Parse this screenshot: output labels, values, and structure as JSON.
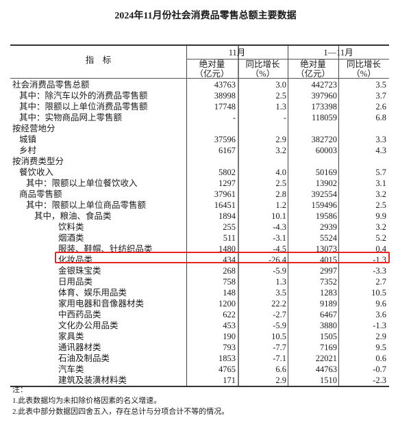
{
  "title": "2024年11月份社会消费品零售总额主要数据",
  "header": {
    "indicator": "指　标",
    "period1": "11月",
    "period2": "1—11月",
    "abs_label": "绝对量",
    "abs_unit": "（亿元）",
    "yoy_label": "同比增长",
    "yoy_unit": "（%）"
  },
  "rows": [
    {
      "label": "社会消费品零售总额",
      "indent": 0,
      "v": [
        "43763",
        "3.0",
        "442723",
        "3.5"
      ]
    },
    {
      "label": "其中：除汽车以外的消费品零售额",
      "indent": 1,
      "v": [
        "38998",
        "2.5",
        "397960",
        "3.7"
      ]
    },
    {
      "label": "其中：限额以上单位消费品零售额",
      "indent": 1,
      "v": [
        "17748",
        "1.3",
        "173398",
        "2.6"
      ]
    },
    {
      "label": "其中：实物商品网上零售额",
      "indent": 1,
      "v": [
        "-",
        "-",
        "118059",
        "6.8"
      ]
    },
    {
      "label": "按经营地分",
      "indent": 0,
      "v": [
        "",
        "",
        "",
        ""
      ]
    },
    {
      "label": "城镇",
      "indent": 1,
      "v": [
        "37596",
        "2.9",
        "382720",
        "3.3"
      ]
    },
    {
      "label": "乡村",
      "indent": 1,
      "v": [
        "6167",
        "3.2",
        "60003",
        "4.3"
      ]
    },
    {
      "label": "按消费类型分",
      "indent": 0,
      "v": [
        "",
        "",
        "",
        ""
      ]
    },
    {
      "label": "餐饮收入",
      "indent": 1,
      "v": [
        "5802",
        "4.0",
        "50169",
        "5.7"
      ]
    },
    {
      "label": "其中：限额以上单位餐饮收入",
      "indent": 2,
      "v": [
        "1297",
        "2.5",
        "13902",
        "3.1"
      ]
    },
    {
      "label": "商品零售额",
      "indent": 1,
      "v": [
        "37961",
        "2.8",
        "392554",
        "3.2"
      ]
    },
    {
      "label": "其中：限额以上单位商品零售额",
      "indent": 2,
      "v": [
        "16451",
        "1.2",
        "159496",
        "2.5"
      ]
    },
    {
      "label": "其中，粮油、食品类",
      "indent": 3,
      "v": [
        "1894",
        "10.1",
        "19586",
        "9.9"
      ]
    },
    {
      "label": "饮料类",
      "indent": 4,
      "v": [
        "255",
        "-4.3",
        "2939",
        "3.2"
      ]
    },
    {
      "label": "烟酒类",
      "indent": 4,
      "v": [
        "511",
        "-3.1",
        "5524",
        "5.2"
      ]
    },
    {
      "label": "服装、鞋帽、针纺织品类",
      "indent": 4,
      "v": [
        "1480",
        "-4.5",
        "13073",
        "0.4"
      ]
    },
    {
      "label": "化妆品类",
      "indent": 4,
      "highlight": true,
      "v": [
        "434",
        "-26.4",
        "4015",
        "-1.3"
      ]
    },
    {
      "label": "金银珠宝类",
      "indent": 4,
      "v": [
        "268",
        "-5.9",
        "2997",
        "-3.3"
      ]
    },
    {
      "label": "日用品类",
      "indent": 4,
      "v": [
        "758",
        "1.3",
        "7352",
        "2.7"
      ]
    },
    {
      "label": "体育、娱乐用品类",
      "indent": 4,
      "v": [
        "148",
        "3.5",
        "1283",
        "10.5"
      ]
    },
    {
      "label": "家用电器和音像器材类",
      "indent": 4,
      "v": [
        "1200",
        "22.2",
        "9189",
        "9.6"
      ]
    },
    {
      "label": "中西药品类",
      "indent": 4,
      "v": [
        "622",
        "-2.7",
        "6467",
        "3.6"
      ]
    },
    {
      "label": "文化办公用品类",
      "indent": 4,
      "v": [
        "453",
        "-5.9",
        "3880",
        "-1.3"
      ]
    },
    {
      "label": "家具类",
      "indent": 4,
      "v": [
        "190",
        "10.5",
        "1505",
        "2.9"
      ]
    },
    {
      "label": "通讯器材类",
      "indent": 4,
      "v": [
        "793",
        "-7.7",
        "7169",
        "9.5"
      ]
    },
    {
      "label": "石油及制品类",
      "indent": 4,
      "v": [
        "1853",
        "-7.1",
        "22021",
        "0.6"
      ]
    },
    {
      "label": "汽车类",
      "indent": 4,
      "v": [
        "4765",
        "6.6",
        "44763",
        "-0.7"
      ]
    },
    {
      "label": "建筑及装潢材料类",
      "indent": 4,
      "v": [
        "171",
        "2.9",
        "1510",
        "-2.3"
      ]
    }
  ],
  "notes": {
    "heading": "注：",
    "items": [
      "1.此表数据均为未扣除价格因素的名义增速。",
      "2.此表中部分数据因四舍五入，存在总计与分项合计不等的情况。"
    ]
  },
  "colors": {
    "highlight_border": "#e8231f"
  }
}
